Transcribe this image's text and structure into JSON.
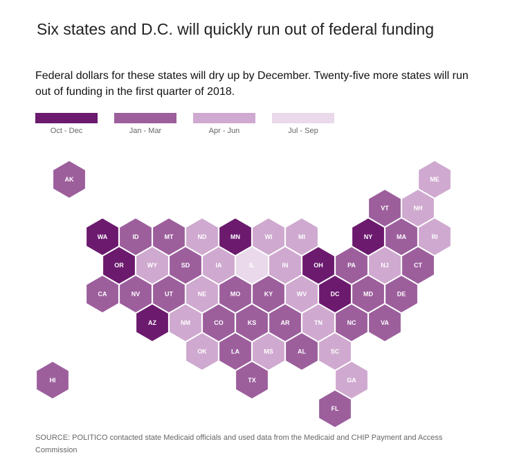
{
  "title": "Six states and D.C. will quickly run out of federal funding",
  "subtitle": "Federal dollars for these states will dry up by December. Twenty-five more states will run out of funding in the first quarter of 2018.",
  "legend": [
    {
      "label": "Oct - Dec",
      "color": "#6b1a6e"
    },
    {
      "label": "Jan - Mar",
      "color": "#9c5f9c"
    },
    {
      "label": "Apr - Jun",
      "color": "#cfa9cf"
    },
    {
      "label": "Jul - Sep",
      "color": "#ead9ea"
    }
  ],
  "chart_data": {
    "type": "heatmap",
    "title": "Six states and D.C. will quickly run out of federal funding",
    "categories": [
      "Oct - Dec",
      "Jan - Mar",
      "Apr - Jun",
      "Jul - Sep"
    ],
    "states": [
      {
        "abbr": "AK",
        "bucket": 1,
        "row": 0,
        "col": 1
      },
      {
        "abbr": "ME",
        "bucket": 2,
        "row": 0,
        "col": 12
      },
      {
        "abbr": "VT",
        "bucket": 1,
        "row": 1,
        "col": 10
      },
      {
        "abbr": "NH",
        "bucket": 2,
        "row": 1,
        "col": 11
      },
      {
        "abbr": "WA",
        "bucket": 0,
        "row": 2,
        "col": 2
      },
      {
        "abbr": "ID",
        "bucket": 1,
        "row": 2,
        "col": 3
      },
      {
        "abbr": "MT",
        "bucket": 1,
        "row": 2,
        "col": 4
      },
      {
        "abbr": "ND",
        "bucket": 2,
        "row": 2,
        "col": 5
      },
      {
        "abbr": "MN",
        "bucket": 0,
        "row": 2,
        "col": 6
      },
      {
        "abbr": "WI",
        "bucket": 2,
        "row": 2,
        "col": 7
      },
      {
        "abbr": "MI",
        "bucket": 2,
        "row": 2,
        "col": 8
      },
      {
        "abbr": "NY",
        "bucket": 0,
        "row": 2,
        "col": 10
      },
      {
        "abbr": "MA",
        "bucket": 1,
        "row": 2,
        "col": 11
      },
      {
        "abbr": "RI",
        "bucket": 2,
        "row": 2,
        "col": 12
      },
      {
        "abbr": "OR",
        "bucket": 0,
        "row": 3,
        "col": 2
      },
      {
        "abbr": "WY",
        "bucket": 2,
        "row": 3,
        "col": 3
      },
      {
        "abbr": "SD",
        "bucket": 1,
        "row": 3,
        "col": 4
      },
      {
        "abbr": "IA",
        "bucket": 2,
        "row": 3,
        "col": 5
      },
      {
        "abbr": "IL",
        "bucket": 3,
        "row": 3,
        "col": 6
      },
      {
        "abbr": "IN",
        "bucket": 2,
        "row": 3,
        "col": 7
      },
      {
        "abbr": "OH",
        "bucket": 0,
        "row": 3,
        "col": 8
      },
      {
        "abbr": "PA",
        "bucket": 1,
        "row": 3,
        "col": 9
      },
      {
        "abbr": "NJ",
        "bucket": 2,
        "row": 3,
        "col": 10
      },
      {
        "abbr": "CT",
        "bucket": 1,
        "row": 3,
        "col": 11
      },
      {
        "abbr": "CA",
        "bucket": 1,
        "row": 4,
        "col": 2
      },
      {
        "abbr": "NV",
        "bucket": 1,
        "row": 4,
        "col": 3
      },
      {
        "abbr": "UT",
        "bucket": 1,
        "row": 4,
        "col": 4
      },
      {
        "abbr": "NE",
        "bucket": 2,
        "row": 4,
        "col": 5
      },
      {
        "abbr": "MO",
        "bucket": 1,
        "row": 4,
        "col": 6
      },
      {
        "abbr": "KY",
        "bucket": 1,
        "row": 4,
        "col": 7
      },
      {
        "abbr": "WV",
        "bucket": 2,
        "row": 4,
        "col": 8
      },
      {
        "abbr": "DC",
        "bucket": 0,
        "row": 4,
        "col": 9
      },
      {
        "abbr": "MD",
        "bucket": 1,
        "row": 4,
        "col": 10
      },
      {
        "abbr": "DE",
        "bucket": 1,
        "row": 4,
        "col": 11
      },
      {
        "abbr": "AZ",
        "bucket": 0,
        "row": 5,
        "col": 3
      },
      {
        "abbr": "NM",
        "bucket": 2,
        "row": 5,
        "col": 4
      },
      {
        "abbr": "CO",
        "bucket": 1,
        "row": 5,
        "col": 5
      },
      {
        "abbr": "KS",
        "bucket": 1,
        "row": 5,
        "col": 6
      },
      {
        "abbr": "AR",
        "bucket": 1,
        "row": 5,
        "col": 7
      },
      {
        "abbr": "TN",
        "bucket": 2,
        "row": 5,
        "col": 8
      },
      {
        "abbr": "NC",
        "bucket": 1,
        "row": 5,
        "col": 9
      },
      {
        "abbr": "VA",
        "bucket": 1,
        "row": 5,
        "col": 10
      },
      {
        "abbr": "OK",
        "bucket": 2,
        "row": 6,
        "col": 5
      },
      {
        "abbr": "LA",
        "bucket": 1,
        "row": 6,
        "col": 6
      },
      {
        "abbr": "MS",
        "bucket": 2,
        "row": 6,
        "col": 7
      },
      {
        "abbr": "AL",
        "bucket": 1,
        "row": 6,
        "col": 8
      },
      {
        "abbr": "SC",
        "bucket": 2,
        "row": 6,
        "col": 9
      },
      {
        "abbr": "HI",
        "bucket": 1,
        "row": 7,
        "col": 0
      },
      {
        "abbr": "TX",
        "bucket": 1,
        "row": 7,
        "col": 6
      },
      {
        "abbr": "GA",
        "bucket": 2,
        "row": 7,
        "col": 9
      },
      {
        "abbr": "FL",
        "bucket": 1,
        "row": 8,
        "col": 9
      }
    ]
  },
  "source": "SOURCE: POLITICO contacted state Medicaid officials and used data from the Medicaid and CHIP Payment and Access Commission"
}
